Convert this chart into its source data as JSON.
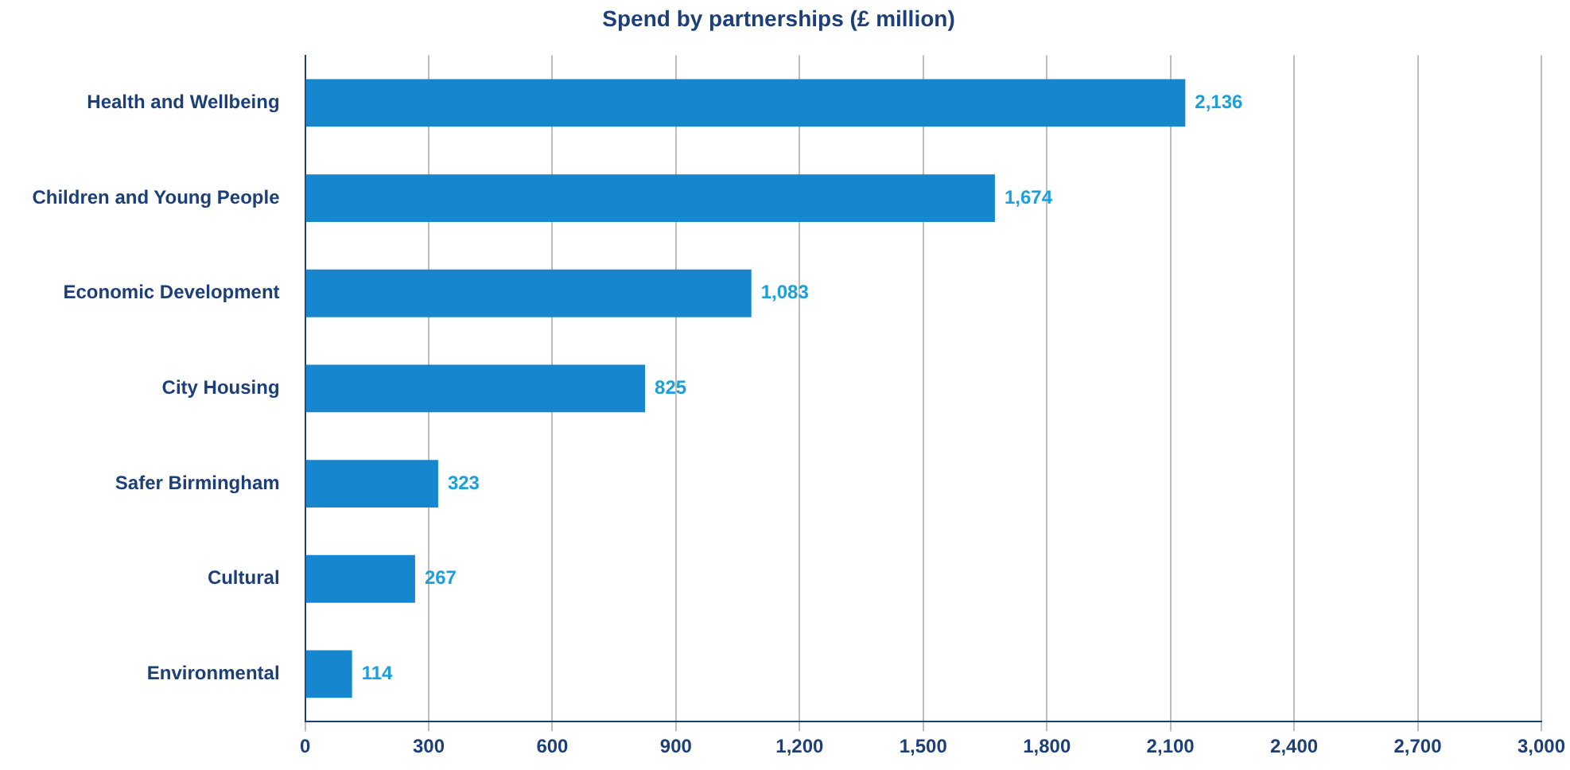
{
  "chart_data": {
    "type": "bar",
    "orientation": "horizontal",
    "title": "Spend by partnerships (£ million)",
    "categories": [
      "Health and Wellbeing",
      "Children and Young People",
      "Economic Development",
      "City Housing",
      "Safer Birmingham",
      "Cultural",
      "Environmental"
    ],
    "values": [
      2136,
      1674,
      1083,
      825,
      323,
      267,
      114
    ],
    "value_labels": [
      "2,136",
      "1,674",
      "1,083",
      "825",
      "323",
      "267",
      "114"
    ],
    "color": "#1686cf",
    "xlim": [
      0,
      3000
    ],
    "xticks": [
      0,
      300,
      600,
      900,
      {
        "value": 1200,
        "label": "1,200"
      },
      {
        "value": 1500,
        "label": "1,500"
      },
      {
        "value": 1800,
        "label": "1,800"
      },
      {
        "value": 2100,
        "label": "2,100"
      },
      {
        "value": 2400,
        "label": "2,400"
      },
      {
        "value": 2700,
        "label": "2,700"
      },
      {
        "value": 3000,
        "label": "3,000"
      }
    ],
    "grid": "x",
    "legend": false
  }
}
